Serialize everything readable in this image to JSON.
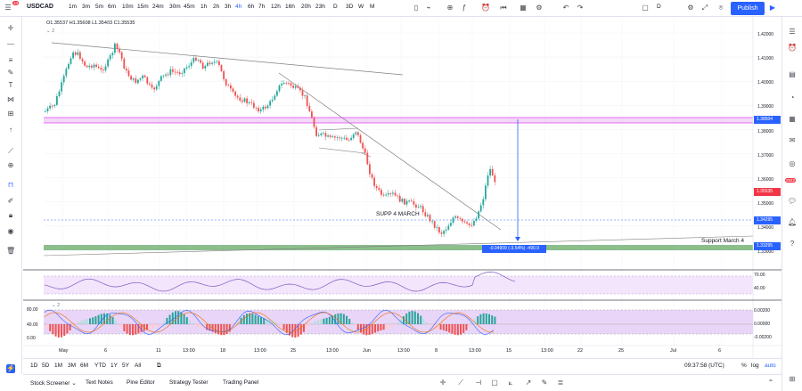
{
  "symbol": "USDCAD",
  "notif_badge": "10",
  "timeframes": [
    "1m",
    "3m",
    "5m",
    "6m",
    "10m",
    "15m",
    "24m",
    "30m",
    "45m",
    "1h",
    "2h",
    "3h",
    "4h",
    "6h",
    "7h",
    "12h",
    "16h",
    "20h",
    "23h",
    "D",
    "3D",
    "W",
    "M"
  ],
  "active_timeframe": "4h",
  "ohlc": {
    "open": "O1.35537",
    "high": "H1.35608",
    "low": "L1.35483",
    "close": "C1.35535"
  },
  "pane_count": "2",
  "toolbar_mode": "D",
  "publish_label": "Publish",
  "price_labels": {
    "levels": [
      "1.42000",
      "1.41000",
      "1.40000",
      "1.39000",
      "1.38000",
      "1.37000",
      "1.36000",
      "1.35000",
      "1.34000",
      "1.33000"
    ],
    "res_line": "1.38504",
    "current": "1.35535",
    "dash_line": "1.34295",
    "support_line": "1.33295",
    "bottom_alt": "1.32295"
  },
  "annotations": {
    "supp4march": "SUPP 4 MARCH",
    "support_march4": "Support March 4",
    "measure": "-0.04909 (-3.54%) -490.9"
  },
  "rsi_levels": [
    "70.00",
    "40.00"
  ],
  "stoch_levels": [
    "80.00",
    "40.00",
    "0.00"
  ],
  "macd_levels": [
    "0.00200",
    "0.00000",
    "-0.00200"
  ],
  "time_axis": [
    "May",
    "6",
    "11",
    "13:00",
    "18",
    "13:00",
    "25",
    "13:00",
    "Jun",
    "13:00",
    "8",
    "13:00",
    "15",
    "13:00",
    "22",
    "25",
    "Jul",
    "6"
  ],
  "time_positions_hint": [],
  "ranges": [
    "1D",
    "5D",
    "1M",
    "3M",
    "6M",
    "YTD",
    "1Y",
    "5Y",
    "All"
  ],
  "clock": "09:37:58 (UTC)",
  "pct_label": "%",
  "log_label": "log",
  "auto_label": "auto",
  "bottom_tabs": [
    "Stock Screener",
    "Text Notes",
    "Pine Editor",
    "Strategy Tester",
    "Trading Panel"
  ],
  "right_badge": "2922",
  "colors": {
    "up": "#26a69a",
    "down": "#ef5350",
    "accent": "#2962ff",
    "resistance": "#e040fb",
    "support": "#4caf50"
  }
}
